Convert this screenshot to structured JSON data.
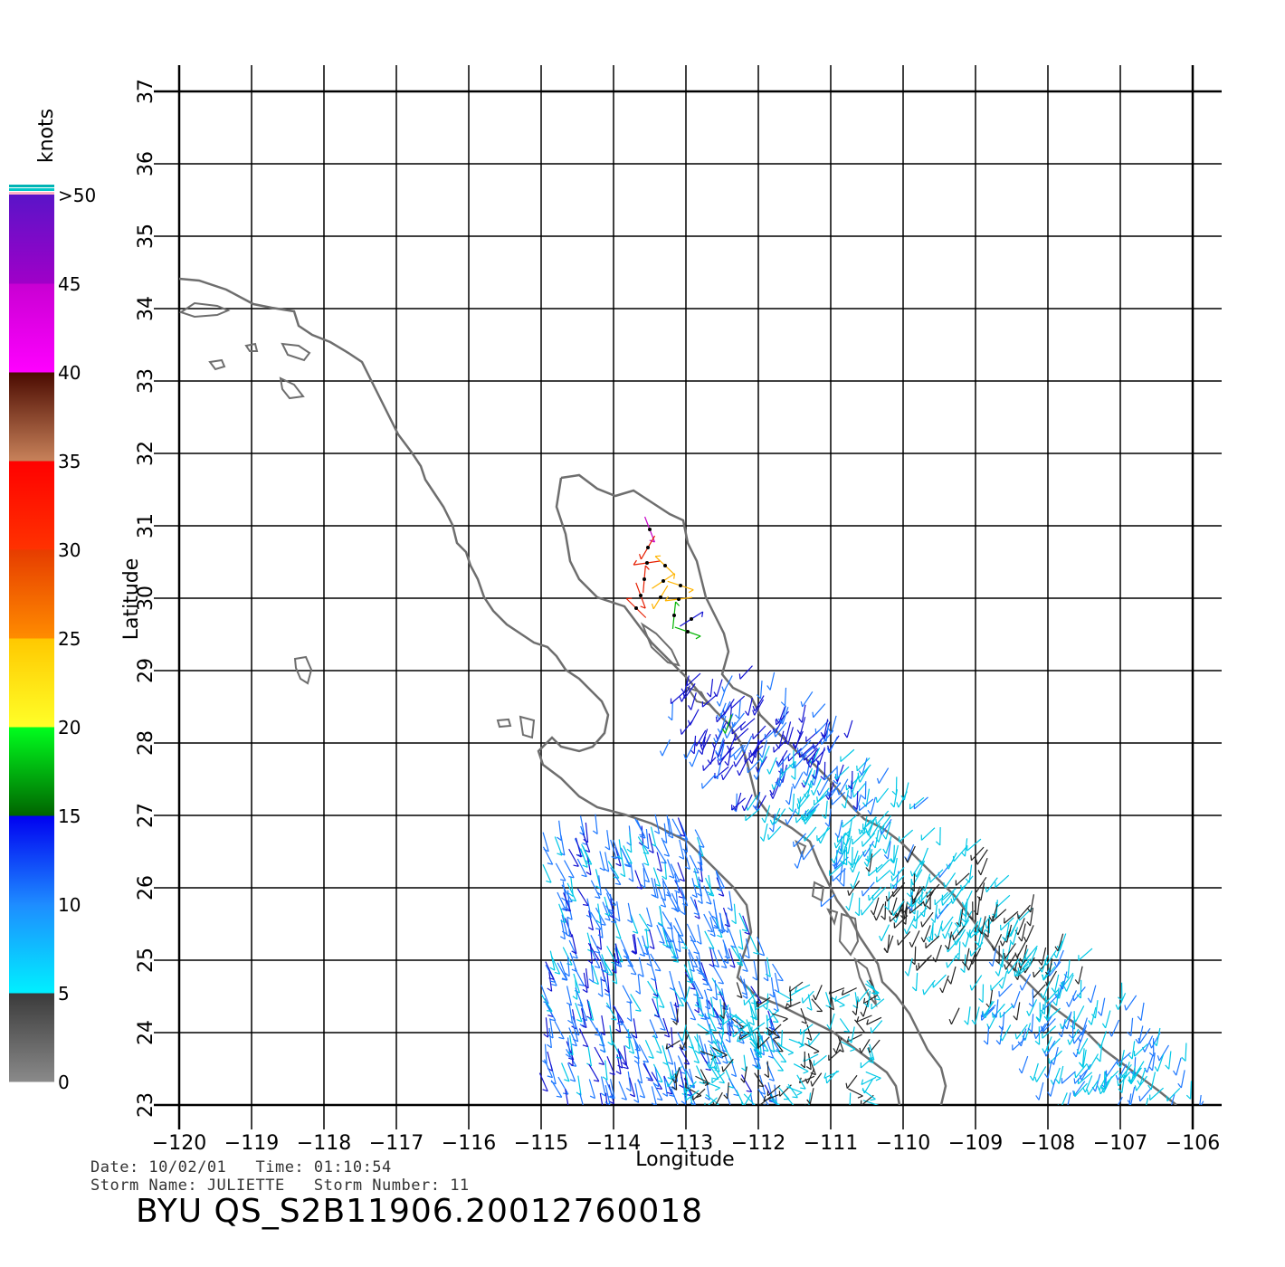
{
  "map": {
    "lon_min": -120,
    "lon_max": -106,
    "lat_min": 23,
    "lat_max": 37,
    "x_tick_labels": [
      "−120",
      "−119",
      "−118",
      "−117",
      "−116",
      "−115",
      "−114",
      "−113",
      "−112",
      "−111",
      "−110",
      "−109",
      "−108",
      "−107",
      "−106"
    ],
    "y_tick_labels": [
      "23",
      "24",
      "25",
      "26",
      "27",
      "28",
      "29",
      "30",
      "31",
      "32",
      "33",
      "34",
      "35",
      "36",
      "37"
    ],
    "xlabel": "Longitude",
    "ylabel": "Latitude",
    "grid": true,
    "coastline_color": "#6e6e6e"
  },
  "legend": {
    "unit": "knots",
    "labels": [
      "0",
      "5",
      "10",
      "15",
      "20",
      "25",
      "30",
      "35",
      "40",
      "45",
      ">50"
    ],
    "bands": [
      {
        "from": 0,
        "to": 5,
        "top": "#3a3a3a",
        "bottom": "#8a8a8a"
      },
      {
        "from": 5,
        "to": 10,
        "top": "#1e8cff",
        "bottom": "#00f0ff"
      },
      {
        "from": 10,
        "to": 15,
        "top": "#0000f0",
        "bottom": "#1e8cff"
      },
      {
        "from": 15,
        "to": 20,
        "top": "#00ff1e",
        "bottom": "#006400"
      },
      {
        "from": 20,
        "to": 25,
        "top": "#ffc800",
        "bottom": "#ffff28"
      },
      {
        "from": 25,
        "to": 30,
        "top": "#e63c00",
        "bottom": "#ff8c00"
      },
      {
        "from": 30,
        "to": 35,
        "top": "#ff0000",
        "bottom": "#ff3200"
      },
      {
        "from": 35,
        "to": 40,
        "top": "#4a0a00",
        "bottom": "#c8825a"
      },
      {
        "from": 40,
        "to": 45,
        "top": "#c800d2",
        "bottom": "#ff00ff"
      },
      {
        "from": 45,
        "to": 50,
        "top": "#5a14c8",
        "bottom": "#a000c8"
      }
    ],
    "top_stripes": [
      "#ffb4c8",
      "#00c8c8",
      "#00b4b4"
    ]
  },
  "info": {
    "line1": "Date: 10/02/01   Time: 01:10:54",
    "line2": "Storm Name: JULIETTE   Storm Number: 11",
    "product": "BYU  QS_S2B11906.20012760018"
  },
  "wind_colors": {
    "calm": "#222222",
    "light": "#00c8e6",
    "moderate": "#1e78ff",
    "fresh": "#1414d2",
    "strong": "#00b400",
    "gale": "#ffb400",
    "storm": "#e61e00",
    "violent": "#c800c8"
  }
}
